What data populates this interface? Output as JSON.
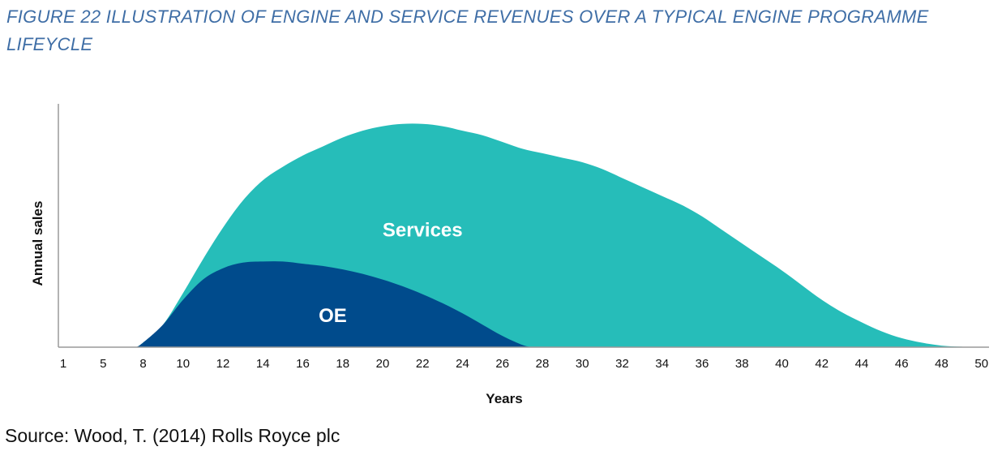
{
  "figure": {
    "caption": "FIGURE 22  ILLUSTRATION OF ENGINE AND SERVICE REVENUES OVER A TYPICAL ENGINE PROGRAMME LIFEYCLE",
    "source": "Source: Wood, T. (2014) Rolls Royce plc"
  },
  "chart_data": {
    "type": "area",
    "title": "",
    "xlabel": "Years",
    "ylabel": "Annual sales",
    "x_tick_labels": [
      "1",
      "5",
      "8",
      "10",
      "12",
      "14",
      "16",
      "18",
      "20",
      "22",
      "24",
      "26",
      "28",
      "30",
      "32",
      "34",
      "36",
      "38",
      "40",
      "42",
      "44",
      "46",
      "48",
      "50"
    ],
    "y_ticks_shown": false,
    "ylim": [
      0,
      100
    ],
    "colors": {
      "services": "#26bdb9",
      "oe": "#004b8c"
    },
    "series": [
      {
        "name": "Services",
        "x": [
          7.5,
          8,
          9,
          10,
          11,
          12,
          13,
          14,
          15,
          16,
          17,
          18,
          19,
          20,
          21,
          22,
          23,
          24,
          25,
          26,
          27,
          28,
          29,
          30,
          31,
          32,
          33,
          34,
          35,
          36,
          37,
          38,
          39,
          40,
          41,
          42,
          43,
          44,
          45,
          46,
          47,
          48,
          49,
          50
        ],
        "values": [
          0,
          2,
          10,
          24,
          39,
          53,
          65,
          74,
          80,
          85,
          89,
          93,
          96,
          98,
          99,
          99,
          98,
          96,
          94,
          91,
          88,
          86,
          84,
          82,
          79,
          75,
          71,
          67,
          63,
          58,
          52,
          46,
          40,
          34,
          27.5,
          21,
          15.5,
          11,
          7,
          4,
          2,
          0.7,
          0.2,
          0
        ]
      },
      {
        "name": "OE",
        "x": [
          7.5,
          8,
          9,
          10,
          11,
          12,
          13,
          14,
          15,
          16,
          17,
          18,
          19,
          20,
          21,
          22,
          23,
          24,
          25,
          26,
          27,
          27.5
        ],
        "values": [
          0,
          2,
          10,
          21,
          30,
          35,
          37.5,
          38,
          38,
          37,
          36,
          34.5,
          32.5,
          30,
          27,
          23.5,
          19.5,
          15,
          10,
          5,
          1,
          0
        ]
      }
    ],
    "annotations": [
      {
        "text": "Services",
        "x": 22,
        "y": 52
      },
      {
        "text": "OE",
        "x": 17.5,
        "y": 14
      }
    ]
  }
}
